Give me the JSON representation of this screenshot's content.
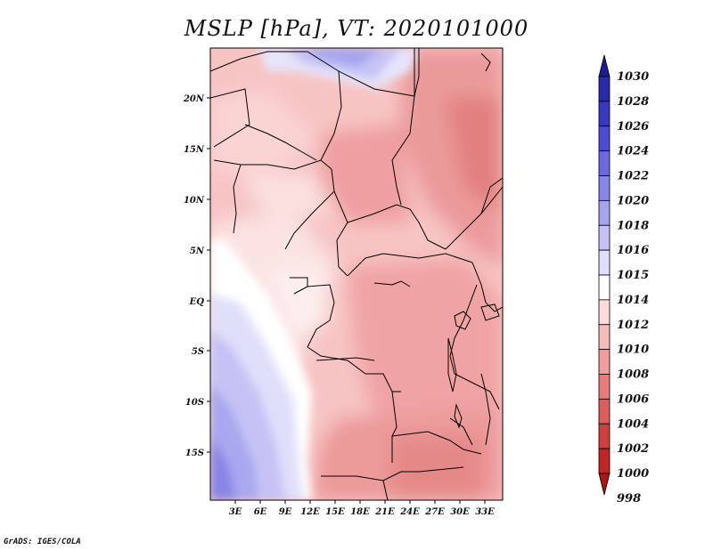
{
  "title": "MSLP [hPa], VT: 2020101000",
  "credit": "GrADS: IGES/COLA",
  "lat_labels": [
    "20N",
    "15N",
    "10N",
    "5N",
    "EQ",
    "5S",
    "10S",
    "15S"
  ],
  "lon_labels": [
    "3E",
    "6E",
    "9E",
    "12E",
    "15E",
    "18E",
    "21E",
    "24E",
    "27E",
    "30E",
    "33E"
  ],
  "colorbar": {
    "levels": [
      "1030",
      "1028",
      "1026",
      "1024",
      "1022",
      "1020",
      "1018",
      "1016",
      "1015",
      "1014",
      "1012",
      "1010",
      "1008",
      "1006",
      "1004",
      "1002",
      "1000",
      "998"
    ],
    "colors": [
      "#1e1b8e",
      "#2a29a6",
      "#3a39bd",
      "#4d4cd0",
      "#6a69de",
      "#8785e6",
      "#a6a4ee",
      "#c5c3f5",
      "#e0dffa",
      "#ffffff",
      "#fbdcdc",
      "#f6bcbc",
      "#ef9d9d",
      "#e57d7d",
      "#da5e5e",
      "#cd4040",
      "#bf2626",
      "#aa1616"
    ]
  },
  "map": {
    "region": "Central Africa",
    "lon_range_deg": [
      0,
      35
    ],
    "lat_range_deg": [
      -20,
      24.5
    ],
    "field": "mean sea level pressure (hPa)"
  }
}
